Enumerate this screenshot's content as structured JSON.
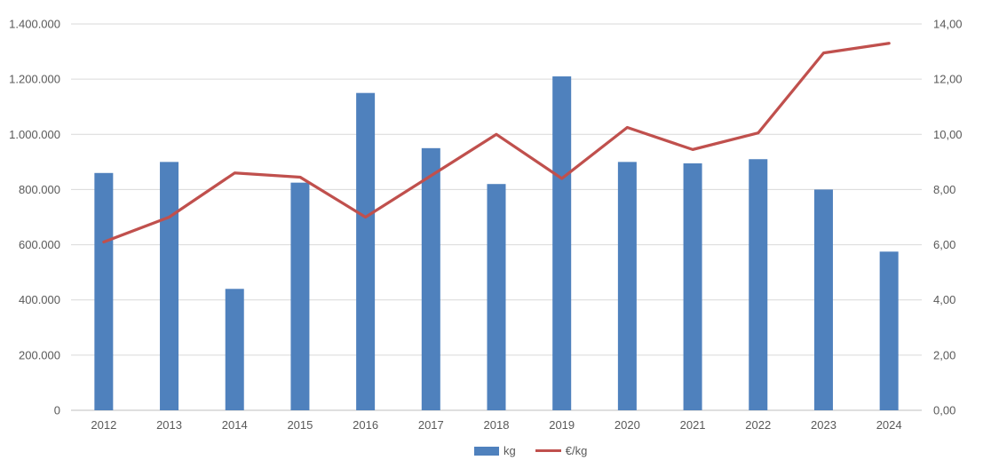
{
  "chart_data": {
    "type": "bar",
    "subtype": "combo-bar-line",
    "title": "",
    "xlabel": "",
    "ylabel": "",
    "grid": true,
    "categories": [
      "2012",
      "2013",
      "2014",
      "2015",
      "2016",
      "2017",
      "2018",
      "2019",
      "2020",
      "2021",
      "2022",
      "2023",
      "2024"
    ],
    "series": [
      {
        "name": "kg",
        "type": "bar",
        "axis": "left",
        "color": "#4f81bd",
        "values": [
          860000,
          900000,
          440000,
          825000,
          1150000,
          950000,
          820000,
          1210000,
          900000,
          895000,
          910000,
          800000,
          575000
        ]
      },
      {
        "name": "€/kg",
        "type": "line",
        "axis": "right",
        "color": "#c0504d",
        "values": [
          6.1,
          7.0,
          8.6,
          8.45,
          7.0,
          8.5,
          10.0,
          8.4,
          10.25,
          9.45,
          10.05,
          12.95,
          13.3
        ]
      }
    ],
    "left_axis": {
      "min": 0,
      "max": 1400000,
      "interval": 200000,
      "tick_labels": [
        "1.400.000",
        "1.200.000",
        "1.000.000",
        "800.000",
        "600.000",
        "400.000",
        "200.000",
        "0"
      ]
    },
    "right_axis": {
      "min": 0,
      "max": 14,
      "interval": 2,
      "tick_labels": [
        "14,00",
        "12,00",
        "10,00",
        "8,00",
        "6,00",
        "4,00",
        "2,00",
        "0,00"
      ]
    },
    "legend": {
      "position": "bottom-center",
      "items": [
        {
          "label": "kg",
          "marker": "rect",
          "color": "#4f81bd"
        },
        {
          "label": "€/kg",
          "marker": "line",
          "color": "#c0504d"
        }
      ]
    },
    "colors": {
      "bar": "#4f81bd",
      "line": "#c0504d",
      "gridline": "#d9d9d9",
      "axis_line": "#bfbfbf",
      "tick_text": "#595959",
      "background": "#ffffff"
    }
  }
}
